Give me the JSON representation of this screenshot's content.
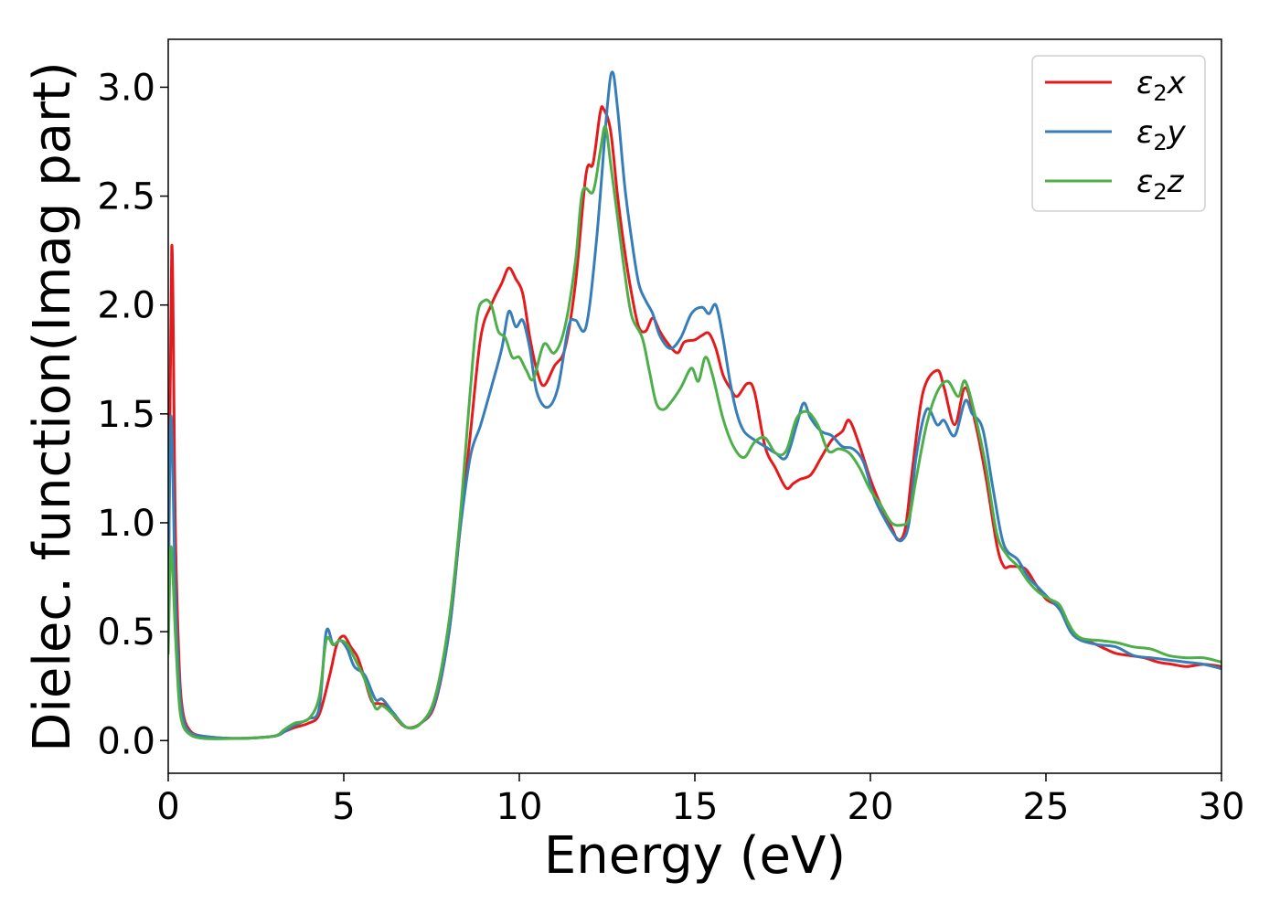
{
  "chart_data": {
    "type": "line",
    "xlabel": "Energy (eV)",
    "ylabel": "Dielec. function(Imag part)",
    "xlim": [
      0,
      30
    ],
    "ylim": [
      -0.15,
      3.22
    ],
    "xticks": [
      0,
      5,
      10,
      15,
      20,
      25,
      30
    ],
    "xtick_labels": [
      "0",
      "5",
      "10",
      "15",
      "20",
      "25",
      "30"
    ],
    "yticks": [
      0.0,
      0.5,
      1.0,
      1.5,
      2.0,
      2.5,
      3.0
    ],
    "ytick_labels": [
      "0.0",
      "0.5",
      "1.0",
      "1.5",
      "2.0",
      "2.5",
      "3.0"
    ],
    "grid": false,
    "legend_position": "top-right",
    "series": [
      {
        "name": "ε₂x",
        "legend_base": "ε",
        "legend_sub": "2",
        "legend_suffix": "x",
        "color": "#e41a1c",
        "points": [
          [
            0,
            0.5
          ],
          [
            0.1,
            2.27
          ],
          [
            0.2,
            1.0
          ],
          [
            0.3,
            0.4
          ],
          [
            0.4,
            0.15
          ],
          [
            0.6,
            0.05
          ],
          [
            1.0,
            0.02
          ],
          [
            2.0,
            0.01
          ],
          [
            3.0,
            0.02
          ],
          [
            3.3,
            0.04
          ],
          [
            3.6,
            0.06
          ],
          [
            4.0,
            0.08
          ],
          [
            4.3,
            0.12
          ],
          [
            4.6,
            0.3
          ],
          [
            4.8,
            0.44
          ],
          [
            5.0,
            0.48
          ],
          [
            5.2,
            0.43
          ],
          [
            5.4,
            0.38
          ],
          [
            5.6,
            0.28
          ],
          [
            5.8,
            0.18
          ],
          [
            6.0,
            0.17
          ],
          [
            6.2,
            0.16
          ],
          [
            6.5,
            0.1
          ],
          [
            6.8,
            0.06
          ],
          [
            7.2,
            0.08
          ],
          [
            7.6,
            0.17
          ],
          [
            8.0,
            0.5
          ],
          [
            8.3,
            0.95
          ],
          [
            8.6,
            1.4
          ],
          [
            8.9,
            1.85
          ],
          [
            9.2,
            2.0
          ],
          [
            9.5,
            2.1
          ],
          [
            9.7,
            2.17
          ],
          [
            9.9,
            2.12
          ],
          [
            10.1,
            2.05
          ],
          [
            10.3,
            1.85
          ],
          [
            10.5,
            1.7
          ],
          [
            10.7,
            1.63
          ],
          [
            11.0,
            1.72
          ],
          [
            11.3,
            1.8
          ],
          [
            11.6,
            2.1
          ],
          [
            11.9,
            2.6
          ],
          [
            12.1,
            2.65
          ],
          [
            12.3,
            2.88
          ],
          [
            12.4,
            2.9
          ],
          [
            12.6,
            2.8
          ],
          [
            12.8,
            2.5
          ],
          [
            13.0,
            2.25
          ],
          [
            13.2,
            2.05
          ],
          [
            13.4,
            1.9
          ],
          [
            13.6,
            1.88
          ],
          [
            13.8,
            1.94
          ],
          [
            14.0,
            1.88
          ],
          [
            14.2,
            1.83
          ],
          [
            14.5,
            1.78
          ],
          [
            14.7,
            1.83
          ],
          [
            15.0,
            1.84
          ],
          [
            15.2,
            1.86
          ],
          [
            15.4,
            1.87
          ],
          [
            15.6,
            1.8
          ],
          [
            15.8,
            1.68
          ],
          [
            16.0,
            1.62
          ],
          [
            16.2,
            1.58
          ],
          [
            16.5,
            1.64
          ],
          [
            16.7,
            1.6
          ],
          [
            17.0,
            1.35
          ],
          [
            17.3,
            1.25
          ],
          [
            17.6,
            1.16
          ],
          [
            17.8,
            1.18
          ],
          [
            18.0,
            1.2
          ],
          [
            18.3,
            1.22
          ],
          [
            18.6,
            1.3
          ],
          [
            18.9,
            1.38
          ],
          [
            19.2,
            1.42
          ],
          [
            19.4,
            1.47
          ],
          [
            19.7,
            1.35
          ],
          [
            20.0,
            1.2
          ],
          [
            20.3,
            1.08
          ],
          [
            20.6,
            0.98
          ],
          [
            20.8,
            0.92
          ],
          [
            21.0,
            0.98
          ],
          [
            21.2,
            1.25
          ],
          [
            21.5,
            1.6
          ],
          [
            21.9,
            1.7
          ],
          [
            22.1,
            1.62
          ],
          [
            22.4,
            1.45
          ],
          [
            22.7,
            1.62
          ],
          [
            23.0,
            1.45
          ],
          [
            23.3,
            1.2
          ],
          [
            23.6,
            0.9
          ],
          [
            23.8,
            0.8
          ],
          [
            24.0,
            0.8
          ],
          [
            24.4,
            0.79
          ],
          [
            24.7,
            0.72
          ],
          [
            25.0,
            0.65
          ],
          [
            25.3,
            0.62
          ],
          [
            25.6,
            0.55
          ],
          [
            25.9,
            0.47
          ],
          [
            26.3,
            0.45
          ],
          [
            26.7,
            0.42
          ],
          [
            27.0,
            0.4
          ],
          [
            27.4,
            0.39
          ],
          [
            27.8,
            0.38
          ],
          [
            28.2,
            0.36
          ],
          [
            28.6,
            0.35
          ],
          [
            29.0,
            0.34
          ],
          [
            29.5,
            0.35
          ],
          [
            30.0,
            0.34
          ]
        ]
      },
      {
        "name": "ε₂y",
        "legend_base": "ε",
        "legend_sub": "2",
        "legend_suffix": "y",
        "color": "#377eb8",
        "points": [
          [
            0,
            0.6
          ],
          [
            0.08,
            1.49
          ],
          [
            0.2,
            0.7
          ],
          [
            0.3,
            0.3
          ],
          [
            0.4,
            0.12
          ],
          [
            0.6,
            0.04
          ],
          [
            1.0,
            0.02
          ],
          [
            2.0,
            0.01
          ],
          [
            3.0,
            0.02
          ],
          [
            3.3,
            0.04
          ],
          [
            3.6,
            0.07
          ],
          [
            4.0,
            0.1
          ],
          [
            4.3,
            0.15
          ],
          [
            4.5,
            0.5
          ],
          [
            4.7,
            0.44
          ],
          [
            4.9,
            0.46
          ],
          [
            5.1,
            0.42
          ],
          [
            5.3,
            0.34
          ],
          [
            5.6,
            0.3
          ],
          [
            5.9,
            0.19
          ],
          [
            6.1,
            0.19
          ],
          [
            6.4,
            0.13
          ],
          [
            6.8,
            0.06
          ],
          [
            7.2,
            0.08
          ],
          [
            7.6,
            0.18
          ],
          [
            8.0,
            0.5
          ],
          [
            8.3,
            0.95
          ],
          [
            8.6,
            1.3
          ],
          [
            8.9,
            1.45
          ],
          [
            9.2,
            1.62
          ],
          [
            9.5,
            1.8
          ],
          [
            9.7,
            1.97
          ],
          [
            9.9,
            1.9
          ],
          [
            10.1,
            1.93
          ],
          [
            10.3,
            1.8
          ],
          [
            10.5,
            1.6
          ],
          [
            10.8,
            1.53
          ],
          [
            11.1,
            1.62
          ],
          [
            11.4,
            1.9
          ],
          [
            11.6,
            1.93
          ],
          [
            11.9,
            1.9
          ],
          [
            12.2,
            2.3
          ],
          [
            12.5,
            2.9
          ],
          [
            12.65,
            3.07
          ],
          [
            12.8,
            2.9
          ],
          [
            13.0,
            2.55
          ],
          [
            13.2,
            2.3
          ],
          [
            13.4,
            2.1
          ],
          [
            13.6,
            2.02
          ],
          [
            13.8,
            1.96
          ],
          [
            14.0,
            1.86
          ],
          [
            14.3,
            1.8
          ],
          [
            14.6,
            1.85
          ],
          [
            14.9,
            1.96
          ],
          [
            15.2,
            1.99
          ],
          [
            15.4,
            1.96
          ],
          [
            15.6,
            2.0
          ],
          [
            15.8,
            1.85
          ],
          [
            16.0,
            1.65
          ],
          [
            16.2,
            1.5
          ],
          [
            16.4,
            1.42
          ],
          [
            16.7,
            1.38
          ],
          [
            17.0,
            1.35
          ],
          [
            17.3,
            1.32
          ],
          [
            17.6,
            1.3
          ],
          [
            17.9,
            1.45
          ],
          [
            18.1,
            1.55
          ],
          [
            18.3,
            1.48
          ],
          [
            18.6,
            1.42
          ],
          [
            18.9,
            1.4
          ],
          [
            19.2,
            1.35
          ],
          [
            19.5,
            1.34
          ],
          [
            19.8,
            1.28
          ],
          [
            20.1,
            1.12
          ],
          [
            20.4,
            1.02
          ],
          [
            20.7,
            0.94
          ],
          [
            20.9,
            0.92
          ],
          [
            21.1,
            1.0
          ],
          [
            21.3,
            1.3
          ],
          [
            21.6,
            1.52
          ],
          [
            21.9,
            1.45
          ],
          [
            22.1,
            1.47
          ],
          [
            22.4,
            1.4
          ],
          [
            22.7,
            1.56
          ],
          [
            22.9,
            1.5
          ],
          [
            23.2,
            1.43
          ],
          [
            23.5,
            1.15
          ],
          [
            23.8,
            0.9
          ],
          [
            24.2,
            0.83
          ],
          [
            24.5,
            0.75
          ],
          [
            24.8,
            0.7
          ],
          [
            25.1,
            0.65
          ],
          [
            25.4,
            0.6
          ],
          [
            25.7,
            0.5
          ],
          [
            26.0,
            0.46
          ],
          [
            26.5,
            0.44
          ],
          [
            27.0,
            0.43
          ],
          [
            27.5,
            0.39
          ],
          [
            28.0,
            0.38
          ],
          [
            28.5,
            0.37
          ],
          [
            29.0,
            0.36
          ],
          [
            29.5,
            0.35
          ],
          [
            30.0,
            0.33
          ]
        ]
      },
      {
        "name": "ε₂z",
        "legend_base": "ε",
        "legend_sub": "2",
        "legend_suffix": "z",
        "color": "#4daf4a",
        "points": [
          [
            0,
            0.4
          ],
          [
            0.08,
            0.89
          ],
          [
            0.2,
            0.5
          ],
          [
            0.3,
            0.2
          ],
          [
            0.4,
            0.08
          ],
          [
            0.6,
            0.03
          ],
          [
            1.0,
            0.01
          ],
          [
            2.0,
            0.01
          ],
          [
            3.0,
            0.02
          ],
          [
            3.3,
            0.05
          ],
          [
            3.6,
            0.08
          ],
          [
            4.0,
            0.1
          ],
          [
            4.3,
            0.2
          ],
          [
            4.5,
            0.46
          ],
          [
            4.7,
            0.44
          ],
          [
            4.9,
            0.46
          ],
          [
            5.1,
            0.44
          ],
          [
            5.3,
            0.38
          ],
          [
            5.6,
            0.28
          ],
          [
            5.9,
            0.15
          ],
          [
            6.1,
            0.16
          ],
          [
            6.4,
            0.12
          ],
          [
            6.8,
            0.06
          ],
          [
            7.2,
            0.08
          ],
          [
            7.6,
            0.2
          ],
          [
            8.0,
            0.55
          ],
          [
            8.3,
            1.0
          ],
          [
            8.6,
            1.6
          ],
          [
            8.8,
            1.95
          ],
          [
            9.0,
            2.02
          ],
          [
            9.2,
            2.0
          ],
          [
            9.4,
            1.88
          ],
          [
            9.6,
            1.85
          ],
          [
            9.8,
            1.76
          ],
          [
            10.0,
            1.76
          ],
          [
            10.2,
            1.7
          ],
          [
            10.4,
            1.66
          ],
          [
            10.7,
            1.82
          ],
          [
            11.0,
            1.78
          ],
          [
            11.3,
            1.9
          ],
          [
            11.6,
            2.2
          ],
          [
            11.8,
            2.52
          ],
          [
            12.1,
            2.52
          ],
          [
            12.3,
            2.7
          ],
          [
            12.45,
            2.82
          ],
          [
            12.6,
            2.65
          ],
          [
            12.8,
            2.4
          ],
          [
            13.0,
            2.15
          ],
          [
            13.2,
            1.95
          ],
          [
            13.5,
            1.85
          ],
          [
            13.7,
            1.7
          ],
          [
            13.9,
            1.55
          ],
          [
            14.1,
            1.52
          ],
          [
            14.3,
            1.55
          ],
          [
            14.6,
            1.62
          ],
          [
            14.9,
            1.71
          ],
          [
            15.1,
            1.65
          ],
          [
            15.3,
            1.76
          ],
          [
            15.5,
            1.68
          ],
          [
            15.8,
            1.48
          ],
          [
            16.1,
            1.35
          ],
          [
            16.4,
            1.3
          ],
          [
            16.7,
            1.37
          ],
          [
            17.0,
            1.39
          ],
          [
            17.3,
            1.32
          ],
          [
            17.6,
            1.33
          ],
          [
            17.9,
            1.48
          ],
          [
            18.2,
            1.51
          ],
          [
            18.5,
            1.45
          ],
          [
            18.8,
            1.33
          ],
          [
            19.1,
            1.34
          ],
          [
            19.4,
            1.32
          ],
          [
            19.7,
            1.25
          ],
          [
            20.0,
            1.15
          ],
          [
            20.3,
            1.08
          ],
          [
            20.6,
            1.0
          ],
          [
            20.9,
            0.99
          ],
          [
            21.1,
            1.02
          ],
          [
            21.3,
            1.2
          ],
          [
            21.6,
            1.45
          ],
          [
            21.9,
            1.6
          ],
          [
            22.2,
            1.65
          ],
          [
            22.5,
            1.58
          ],
          [
            22.7,
            1.65
          ],
          [
            23.0,
            1.48
          ],
          [
            23.3,
            1.25
          ],
          [
            23.6,
            0.95
          ],
          [
            23.9,
            0.85
          ],
          [
            24.2,
            0.8
          ],
          [
            24.5,
            0.73
          ],
          [
            24.8,
            0.68
          ],
          [
            25.1,
            0.65
          ],
          [
            25.4,
            0.62
          ],
          [
            25.7,
            0.52
          ],
          [
            26.0,
            0.47
          ],
          [
            26.5,
            0.46
          ],
          [
            27.0,
            0.45
          ],
          [
            27.5,
            0.43
          ],
          [
            28.0,
            0.42
          ],
          [
            28.5,
            0.39
          ],
          [
            29.0,
            0.38
          ],
          [
            29.5,
            0.38
          ],
          [
            30.0,
            0.36
          ]
        ]
      }
    ]
  }
}
